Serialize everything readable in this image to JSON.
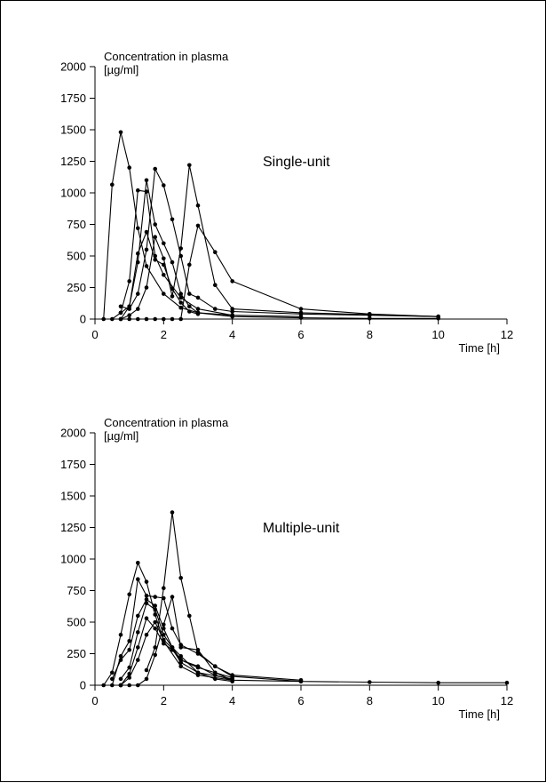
{
  "chart_data": [
    {
      "type": "line",
      "title": "Single-unit",
      "ylabel": "Concentration in plasma",
      "ylabel_unit": "[µg/ml]",
      "xlabel": "Time [h]",
      "xlim": [
        0,
        12
      ],
      "ylim": [
        0,
        2000
      ],
      "x_ticks": [
        "0",
        "2",
        "4",
        "6",
        "8",
        "10",
        "12"
      ],
      "y_ticks": [
        "0",
        "250",
        "500",
        "750",
        "1000",
        "1250",
        "1500",
        "1750",
        "2000"
      ],
      "grid": false,
      "series": [
        {
          "points": [
            [
              0.25,
              0
            ],
            [
              0.5,
              1065
            ],
            [
              0.75,
              1480
            ],
            [
              1,
              1200
            ],
            [
              1.25,
              720
            ],
            [
              1.5,
              420
            ],
            [
              2,
              200
            ],
            [
              2.5,
              90
            ],
            [
              3,
              50
            ],
            [
              4,
              20
            ],
            [
              6,
              10
            ],
            [
              8,
              5
            ],
            [
              10,
              5
            ]
          ]
        },
        {
          "points": [
            [
              0.5,
              0
            ],
            [
              0.75,
              50
            ],
            [
              1,
              300
            ],
            [
              1.25,
              1020
            ],
            [
              1.5,
              1010
            ],
            [
              1.75,
              500
            ],
            [
              2,
              350
            ],
            [
              2.5,
              170
            ],
            [
              3,
              80
            ],
            [
              4,
              30
            ],
            [
              6,
              20
            ]
          ]
        },
        {
          "points": [
            [
              0.75,
              0
            ],
            [
              1,
              100
            ],
            [
              1.25,
              450
            ],
            [
              1.5,
              1100
            ],
            [
              1.75,
              750
            ],
            [
              2,
              600
            ],
            [
              2.25,
              450
            ],
            [
              2.5,
              200
            ],
            [
              2.75,
              100
            ],
            [
              3,
              50
            ],
            [
              4,
              30
            ]
          ]
        },
        {
          "points": [
            [
              0.75,
              50
            ],
            [
              1,
              100
            ],
            [
              1.25,
              520
            ],
            [
              1.5,
              690
            ],
            [
              1.75,
              470
            ],
            [
              2,
              430
            ],
            [
              2.25,
              240
            ],
            [
              2.5,
              130
            ],
            [
              2.75,
              60
            ],
            [
              3,
              40
            ]
          ]
        },
        {
          "points": [
            [
              0.75,
              100
            ],
            [
              1,
              80
            ],
            [
              1.25,
              200
            ],
            [
              1.5,
              550
            ],
            [
              1.75,
              1190
            ],
            [
              2,
              1060
            ],
            [
              2.25,
              790
            ],
            [
              2.5,
              500
            ],
            [
              2.75,
              200
            ],
            [
              3,
              170
            ],
            [
              3.5,
              80
            ],
            [
              4,
              60
            ],
            [
              6,
              40
            ],
            [
              8,
              30
            ],
            [
              10,
              20
            ]
          ]
        },
        {
          "points": [
            [
              0.75,
              0
            ],
            [
              1,
              30
            ],
            [
              1.25,
              80
            ],
            [
              1.5,
              250
            ],
            [
              1.75,
              650
            ],
            [
              2,
              480
            ],
            [
              2.25,
              180
            ],
            [
              2.5,
              560
            ],
            [
              2.75,
              1220
            ],
            [
              3,
              900
            ],
            [
              3.5,
              270
            ],
            [
              4,
              80
            ],
            [
              6,
              50
            ],
            [
              10,
              20
            ]
          ]
        },
        {
          "points": [
            [
              1,
              0
            ],
            [
              1.25,
              0
            ],
            [
              1.5,
              0
            ],
            [
              1.75,
              0
            ],
            [
              2,
              0
            ],
            [
              2.25,
              0
            ],
            [
              2.5,
              0
            ],
            [
              2.75,
              430
            ],
            [
              3,
              740
            ],
            [
              3.5,
              530
            ],
            [
              4,
              300
            ],
            [
              6,
              80
            ],
            [
              8,
              40
            ],
            [
              10,
              20
            ]
          ]
        }
      ]
    },
    {
      "type": "line",
      "title": "Multiple-unit",
      "ylabel": "Concentration in plasma",
      "ylabel_unit": "[µg/ml]",
      "xlabel": "Time [h]",
      "xlim": [
        0,
        12
      ],
      "ylim": [
        0,
        2000
      ],
      "x_ticks": [
        "0",
        "2",
        "4",
        "6",
        "8",
        "10",
        "12"
      ],
      "y_ticks": [
        "0",
        "250",
        "500",
        "750",
        "1000",
        "1250",
        "1500",
        "1750",
        "2000"
      ],
      "grid": false,
      "series": [
        {
          "points": [
            [
              0.25,
              0
            ],
            [
              0.5,
              100
            ],
            [
              0.75,
              400
            ],
            [
              1,
              720
            ],
            [
              1.25,
              970
            ],
            [
              1.5,
              820
            ],
            [
              1.75,
              560
            ],
            [
              2,
              350
            ],
            [
              2.5,
              150
            ],
            [
              3,
              80
            ],
            [
              4,
              40
            ],
            [
              6,
              30
            ]
          ]
        },
        {
          "points": [
            [
              0.5,
              0
            ],
            [
              0.75,
              230
            ],
            [
              1,
              350
            ],
            [
              1.25,
              840
            ],
            [
              1.5,
              710
            ],
            [
              1.75,
              700
            ],
            [
              2,
              690
            ],
            [
              2.25,
              450
            ],
            [
              2.5,
              320
            ],
            [
              3,
              250
            ],
            [
              3.5,
              150
            ],
            [
              4,
              80
            ],
            [
              6,
              40
            ]
          ]
        },
        {
          "points": [
            [
              0.5,
              50
            ],
            [
              0.75,
              200
            ],
            [
              1,
              280
            ],
            [
              1.25,
              550
            ],
            [
              1.5,
              680
            ],
            [
              1.75,
              630
            ],
            [
              2,
              450
            ],
            [
              2.25,
              300
            ],
            [
              2.5,
              200
            ],
            [
              3,
              150
            ],
            [
              3.5,
              80
            ],
            [
              4,
              40
            ]
          ]
        },
        {
          "points": [
            [
              0.75,
              50
            ],
            [
              1,
              140
            ],
            [
              1.25,
              420
            ],
            [
              1.5,
              650
            ],
            [
              1.75,
              600
            ],
            [
              2,
              400
            ],
            [
              2.25,
              300
            ],
            [
              2.5,
              230
            ],
            [
              3,
              100
            ],
            [
              4,
              50
            ]
          ]
        },
        {
          "points": [
            [
              0.75,
              0
            ],
            [
              1,
              90
            ],
            [
              1.25,
              300
            ],
            [
              1.5,
              530
            ],
            [
              1.75,
              450
            ],
            [
              2,
              330
            ],
            [
              2.25,
              280
            ],
            [
              2.5,
              200
            ],
            [
              3,
              140
            ],
            [
              4,
              60
            ]
          ]
        },
        {
          "points": [
            [
              0.75,
              0
            ],
            [
              1,
              60
            ],
            [
              1.25,
              200
            ],
            [
              1.5,
              400
            ],
            [
              1.75,
              500
            ],
            [
              2,
              360
            ],
            [
              2.25,
              290
            ],
            [
              2.5,
              180
            ],
            [
              3,
              100
            ],
            [
              3.5,
              50
            ],
            [
              4,
              30
            ]
          ]
        },
        {
          "points": [
            [
              0.75,
              0
            ],
            [
              1,
              0
            ],
            [
              1.25,
              0
            ],
            [
              1.5,
              50
            ],
            [
              1.75,
              240
            ],
            [
              2,
              480
            ],
            [
              2.25,
              700
            ],
            [
              2.5,
              300
            ],
            [
              3,
              280
            ],
            [
              3.5,
              100
            ],
            [
              4,
              40
            ]
          ]
        },
        {
          "points": [
            [
              1.5,
              120
            ],
            [
              1.75,
              300
            ],
            [
              2,
              770
            ],
            [
              2.25,
              1370
            ],
            [
              2.5,
              850
            ],
            [
              2.75,
              550
            ],
            [
              3,
              260
            ],
            [
              3.5,
              150
            ],
            [
              4,
              70
            ],
            [
              6,
              30
            ],
            [
              8,
              25
            ],
            [
              10,
              20
            ],
            [
              12,
              20
            ]
          ]
        }
      ]
    }
  ]
}
